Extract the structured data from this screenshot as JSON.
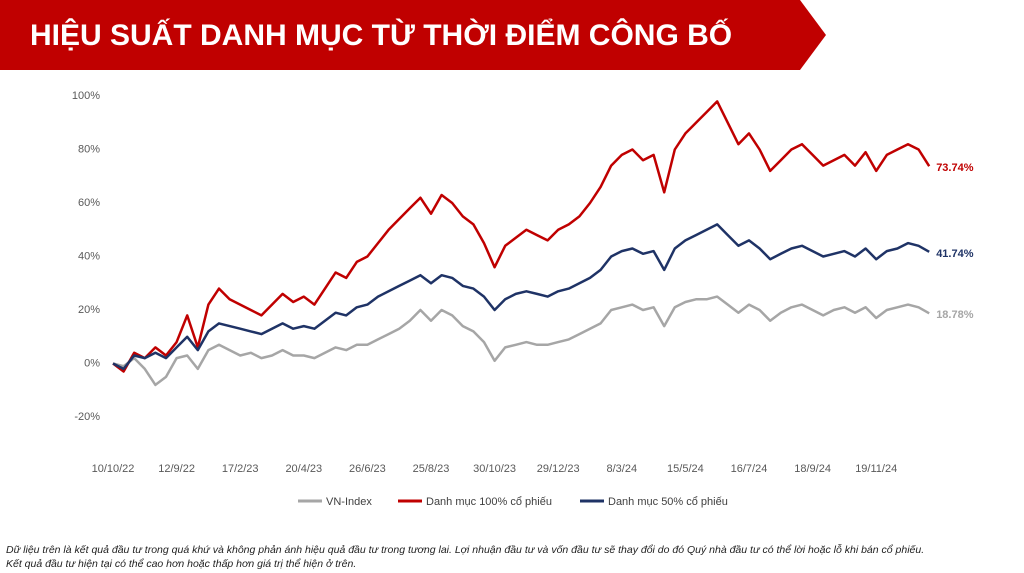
{
  "header": {
    "title": "HIỆU SUẤT DANH MỤC TỪ THỜI ĐIỂM CÔNG BỐ"
  },
  "chart_data": {
    "type": "line",
    "categories": [
      "10/10/22",
      null,
      null,
      null,
      null,
      null,
      "12/9/22",
      null,
      null,
      null,
      null,
      null,
      "17/2/23",
      null,
      null,
      null,
      null,
      null,
      "20/4/23",
      null,
      null,
      null,
      null,
      null,
      "26/6/23",
      null,
      null,
      null,
      null,
      null,
      "25/8/23",
      null,
      null,
      null,
      null,
      null,
      "30/10/23",
      null,
      null,
      null,
      null,
      null,
      "29/12/23",
      null,
      null,
      null,
      null,
      null,
      "8/3/24",
      null,
      null,
      null,
      null,
      null,
      "15/5/24",
      null,
      null,
      null,
      null,
      null,
      "16/7/24",
      null,
      null,
      null,
      null,
      null,
      "18/9/24",
      null,
      null,
      null,
      null,
      null,
      "19/11/24",
      null,
      null,
      null,
      null,
      null
    ],
    "ylim": [
      -20,
      100
    ],
    "yticks": [
      {
        "value": -20,
        "label": "-20%"
      },
      {
        "value": 0,
        "label": "0%"
      },
      {
        "value": 20,
        "label": "20%"
      },
      {
        "value": 40,
        "label": "40%"
      },
      {
        "value": 60,
        "label": "60%"
      },
      {
        "value": 80,
        "label": "80%"
      },
      {
        "value": 100,
        "label": "100%"
      }
    ],
    "grid": false,
    "legend": "bottom",
    "series": [
      {
        "name": "VN-Index",
        "color": "#a6a6a6",
        "values": [
          0,
          -1,
          2,
          -2,
          -8,
          -5,
          2,
          3,
          -2,
          5,
          7,
          5,
          3,
          4,
          2,
          3,
          5,
          3,
          3,
          2,
          4,
          6,
          5,
          7,
          7,
          9,
          11,
          13,
          16,
          20,
          16,
          20,
          18,
          14,
          12,
          8,
          1,
          6,
          7,
          8,
          7,
          7,
          8,
          9,
          11,
          13,
          15,
          20,
          21,
          22,
          20,
          21,
          14,
          21,
          23,
          24,
          24,
          25,
          22,
          19,
          22,
          20,
          16,
          19,
          21,
          22,
          20,
          18,
          20,
          21,
          19,
          21,
          17,
          20,
          21,
          22,
          21,
          18.78
        ],
        "value_labels": [
          null,
          null,
          null,
          null,
          null,
          null,
          null,
          null,
          null,
          null,
          null,
          null,
          null,
          null,
          null,
          null,
          null,
          null,
          null,
          null,
          null,
          null,
          null,
          null,
          null,
          null,
          null,
          null,
          null,
          null,
          null,
          null,
          null,
          null,
          null,
          null,
          null,
          null,
          null,
          null,
          null,
          null,
          null,
          null,
          null,
          null,
          null,
          null,
          null,
          null,
          null,
          null,
          null,
          null,
          null,
          null,
          null,
          null,
          null,
          null,
          null,
          null,
          null,
          null,
          null,
          null,
          null,
          null,
          null,
          null,
          null,
          null,
          null,
          null,
          null,
          null,
          null,
          "18.78%"
        ]
      },
      {
        "name": "Danh mục 100% cổ phiếu",
        "color": "#c00000",
        "values": [
          0,
          -3,
          4,
          2,
          6,
          3,
          8,
          18,
          6,
          22,
          28,
          24,
          22,
          20,
          18,
          22,
          26,
          23,
          25,
          22,
          28,
          34,
          32,
          38,
          40,
          45,
          50,
          54,
          58,
          62,
          56,
          63,
          60,
          55,
          52,
          45,
          36,
          44,
          47,
          50,
          48,
          46,
          50,
          52,
          55,
          60,
          66,
          74,
          78,
          80,
          76,
          78,
          64,
          80,
          86,
          90,
          94,
          98,
          90,
          82,
          86,
          80,
          72,
          76,
          80,
          82,
          78,
          74,
          76,
          78,
          74,
          79,
          72,
          78,
          80,
          82,
          80,
          73.74
        ],
        "value_labels": [
          null,
          null,
          null,
          null,
          null,
          null,
          null,
          null,
          null,
          null,
          null,
          null,
          null,
          null,
          null,
          null,
          null,
          null,
          null,
          null,
          null,
          null,
          null,
          null,
          null,
          null,
          null,
          null,
          null,
          null,
          null,
          null,
          null,
          null,
          null,
          null,
          null,
          null,
          null,
          null,
          null,
          null,
          null,
          null,
          null,
          null,
          null,
          null,
          null,
          null,
          null,
          null,
          null,
          null,
          null,
          null,
          null,
          null,
          null,
          null,
          null,
          null,
          null,
          null,
          null,
          null,
          null,
          null,
          null,
          null,
          null,
          null,
          null,
          null,
          null,
          null,
          null,
          "73.74%"
        ]
      },
      {
        "name": "Danh mục 50% cổ phiếu",
        "color": "#1f3366",
        "values": [
          0,
          -2,
          3,
          2,
          4,
          2,
          6,
          10,
          5,
          12,
          15,
          14,
          13,
          12,
          11,
          13,
          15,
          13,
          14,
          13,
          16,
          19,
          18,
          21,
          22,
          25,
          27,
          29,
          31,
          33,
          30,
          33,
          32,
          29,
          28,
          25,
          20,
          24,
          26,
          27,
          26,
          25,
          27,
          28,
          30,
          32,
          35,
          40,
          42,
          43,
          41,
          42,
          35,
          43,
          46,
          48,
          50,
          52,
          48,
          44,
          46,
          43,
          39,
          41,
          43,
          44,
          42,
          40,
          41,
          42,
          40,
          43,
          39,
          42,
          43,
          45,
          44,
          41.74
        ],
        "value_labels": [
          null,
          null,
          null,
          null,
          null,
          null,
          null,
          null,
          null,
          null,
          null,
          null,
          null,
          null,
          null,
          null,
          null,
          null,
          null,
          null,
          null,
          null,
          null,
          null,
          null,
          null,
          null,
          null,
          null,
          null,
          null,
          null,
          null,
          null,
          null,
          null,
          null,
          null,
          null,
          null,
          null,
          null,
          null,
          null,
          null,
          null,
          null,
          null,
          null,
          null,
          null,
          null,
          null,
          null,
          null,
          null,
          null,
          null,
          null,
          null,
          null,
          null,
          null,
          null,
          null,
          null,
          null,
          null,
          null,
          null,
          null,
          null,
          null,
          null,
          null,
          null,
          null,
          "41.74%"
        ]
      }
    ]
  },
  "footnote": {
    "lines": [
      "Dữ liệu trên là kết quả đầu tư trong quá khứ và không phản ánh hiệu quả đầu tư trong tương lai. Lợi nhuận đầu tư và vốn đầu tư sẽ thay đổi do đó Quý nhà đầu tư có thể lời hoặc lỗ khi bán cổ phiếu.",
      "Kết quả đầu tư hiện tại có thể cao hơn hoặc thấp hơn giá trị thể hiện ở trên."
    ]
  }
}
